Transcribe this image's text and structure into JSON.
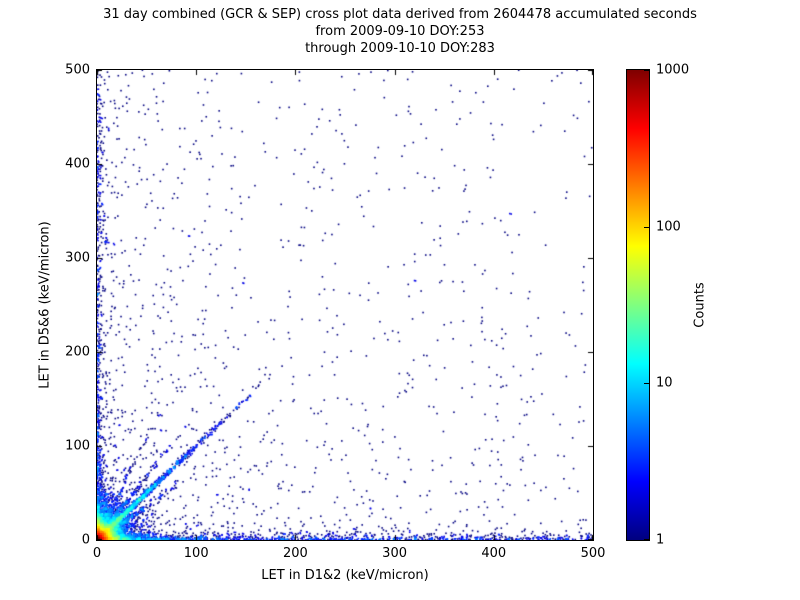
{
  "chart_data": {
    "type": "scatter",
    "title": "31 day combined (GCR & SEP) cross plot data derived from 2604478 accumulated seconds",
    "subtitle_from": "from 2009-09-10 DOY:253",
    "subtitle_through": "through 2009-10-10 DOY:283",
    "xlabel": "LET in D1&2 (keV/micron)",
    "ylabel": "LET in D5&6 (keV/micron)",
    "xlim": [
      0,
      500
    ],
    "ylim": [
      0,
      500
    ],
    "xticks": [
      0,
      100,
      200,
      300,
      400,
      500
    ],
    "yticks": [
      0,
      100,
      200,
      300,
      400,
      500
    ],
    "grid": false,
    "background": "#ffffff",
    "point_color_low": "#00007f",
    "colorbar": {
      "label": "Counts",
      "scale": "log",
      "min": 1,
      "max": 1000,
      "ticks": [
        1,
        10,
        100,
        1000
      ],
      "colormap": "jet",
      "stops": [
        {
          "pos": 0,
          "color": "#00007f"
        },
        {
          "pos": 0.125,
          "color": "#0000ff"
        },
        {
          "pos": 0.375,
          "color": "#00ffff"
        },
        {
          "pos": 0.625,
          "color": "#ffff00"
        },
        {
          "pos": 0.875,
          "color": "#ff0000"
        },
        {
          "pos": 1,
          "color": "#7f0000"
        }
      ]
    },
    "distribution": {
      "note": "procedural approximation of the density point cloud: hot multicolor core at origin (counts up to ~1000), strong diagonal streak y=x out to ~170, fainter fan streaks near origin, sparse dark-blue bands hugging both axes out to 500, and scattered single-count dots across the field",
      "seed": 20090910,
      "bin_size": 2,
      "log_color_max": 3,
      "clusters": [
        {
          "type": "exp2d",
          "count": 6000,
          "scale_x": 5,
          "scale_y": 5
        },
        {
          "type": "exp2d",
          "count": 2600,
          "scale_x": 14,
          "scale_y": 14
        },
        {
          "type": "diagonal",
          "count": 1600,
          "slope": 1.0,
          "scale": 35,
          "length": 175,
          "sigma": 1.3
        },
        {
          "type": "diagonal",
          "count": 380,
          "slope": 1.35,
          "scale": 20,
          "length": 95,
          "sigma": 1.2
        },
        {
          "type": "diagonal",
          "count": 380,
          "slope": 0.72,
          "scale": 20,
          "length": 95,
          "sigma": 1.2
        },
        {
          "type": "diagonal",
          "count": 160,
          "slope": 2.2,
          "scale": 15,
          "length": 65,
          "sigma": 1.2
        },
        {
          "type": "diagonal",
          "count": 160,
          "slope": 0.45,
          "scale": 15,
          "length": 65,
          "sigma": 1.2
        },
        {
          "type": "band_x",
          "count": 1100,
          "y_scale": 2.5,
          "x_pow": 2.0
        },
        {
          "type": "band_y",
          "count": 620,
          "x_scale": 2.5,
          "y_pow": 2.0
        },
        {
          "type": "field",
          "count": 1500,
          "x_pow": 2.8,
          "y_pow": 2.8
        },
        {
          "type": "uniform",
          "count": 280
        }
      ]
    }
  }
}
